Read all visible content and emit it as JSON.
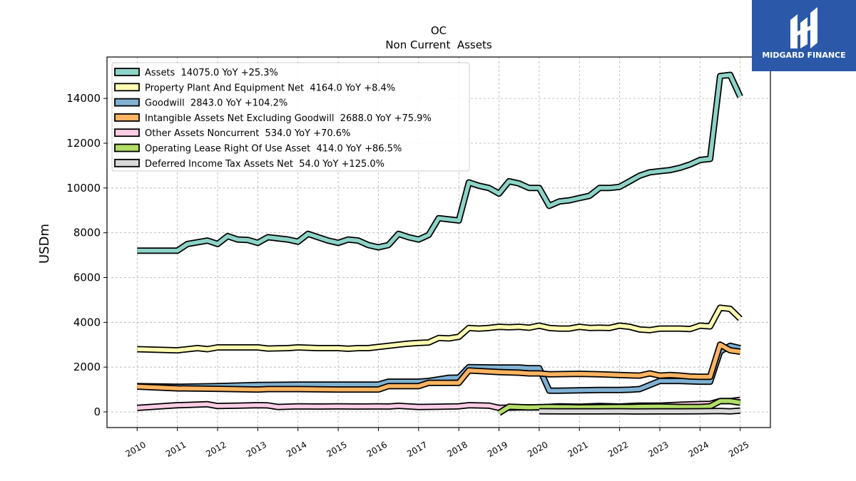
{
  "chart_data": {
    "type": "line",
    "title": "OC",
    "subtitle": "Non Current  Assets",
    "ylabel": "USDm",
    "xlabel": "",
    "ylim": [
      -700,
      15850
    ],
    "xlim": [
      2009.25,
      2025.75
    ],
    "yticks": [
      0,
      2000,
      4000,
      6000,
      8000,
      10000,
      12000,
      14000
    ],
    "xticks": [
      "2010",
      "2011",
      "2012",
      "2013",
      "2014",
      "2015",
      "2016",
      "2017",
      "2018",
      "2019",
      "2020",
      "2021",
      "2022",
      "2023",
      "2024",
      "2025"
    ],
    "grid": true,
    "legend_position": "top-left",
    "series": [
      {
        "name": "Assets",
        "legend": "Assets  14075.0 YoY +25.3%",
        "color": "#8dd3c7",
        "x": [
          2010.0,
          2011.0,
          2011.25,
          2011.75,
          2012.0,
          2012.25,
          2012.5,
          2012.75,
          2013.0,
          2013.25,
          2013.5,
          2013.75,
          2014.0,
          2014.25,
          2014.5,
          2014.75,
          2015.0,
          2015.25,
          2015.5,
          2015.75,
          2016.0,
          2016.25,
          2016.5,
          2016.75,
          2017.0,
          2017.25,
          2017.5,
          2017.75,
          2018.0,
          2018.25,
          2018.5,
          2018.75,
          2019.0,
          2019.25,
          2019.5,
          2019.75,
          2020.0,
          2020.25,
          2020.5,
          2020.75,
          2021.0,
          2021.25,
          2021.5,
          2021.75,
          2022.0,
          2022.25,
          2022.5,
          2022.75,
          2023.0,
          2023.25,
          2023.5,
          2023.75,
          2024.0,
          2024.25,
          2024.5,
          2024.75,
          2025.0
        ],
        "y": [
          7200,
          7200,
          7500,
          7650,
          7500,
          7850,
          7700,
          7680,
          7550,
          7800,
          7750,
          7700,
          7600,
          7950,
          7800,
          7650,
          7550,
          7700,
          7650,
          7450,
          7350,
          7450,
          7950,
          7800,
          7700,
          7900,
          8650,
          8600,
          8550,
          10250,
          10100,
          10000,
          9750,
          10300,
          10200,
          10000,
          10000,
          9200,
          9400,
          9450,
          9550,
          9650,
          10000,
          10000,
          10050,
          10300,
          10550,
          10700,
          10750,
          10800,
          10900,
          11050,
          11250,
          11300,
          15000,
          15050,
          14075
        ]
      },
      {
        "name": "Property Plant And Equipment Net",
        "legend": "Property Plant And Equipment Net  4164.0 YoY +8.4%",
        "color": "#ffffb3",
        "x": [
          2010.0,
          2011.0,
          2011.5,
          2011.75,
          2012.0,
          2012.5,
          2013.0,
          2013.25,
          2013.75,
          2014.0,
          2014.5,
          2015.0,
          2015.25,
          2015.5,
          2015.75,
          2016.0,
          2016.25,
          2016.5,
          2016.75,
          2017.0,
          2017.25,
          2017.5,
          2017.75,
          2018.0,
          2018.25,
          2018.5,
          2018.75,
          2019.0,
          2019.25,
          2019.5,
          2019.75,
          2020.0,
          2020.25,
          2020.5,
          2020.75,
          2021.0,
          2021.25,
          2021.5,
          2021.75,
          2022.0,
          2022.25,
          2022.5,
          2022.75,
          2023.0,
          2023.25,
          2023.5,
          2023.75,
          2024.0,
          2024.25,
          2024.5,
          2024.75,
          2025.0
        ],
        "y": [
          2800,
          2750,
          2850,
          2800,
          2880,
          2880,
          2880,
          2830,
          2850,
          2880,
          2850,
          2850,
          2820,
          2850,
          2850,
          2900,
          2950,
          3000,
          3050,
          3080,
          3100,
          3300,
          3280,
          3350,
          3750,
          3720,
          3750,
          3800,
          3780,
          3800,
          3760,
          3850,
          3750,
          3720,
          3720,
          3800,
          3750,
          3760,
          3750,
          3850,
          3800,
          3680,
          3650,
          3720,
          3720,
          3720,
          3700,
          3850,
          3820,
          4650,
          4600,
          4164
        ]
      },
      {
        "name": "Goodwill",
        "legend": "Goodwill  2843.0 YoY +104.2%",
        "color": "#80b1d3",
        "x": [
          2010.0,
          2011.0,
          2012.0,
          2013.0,
          2014.0,
          2015.0,
          2016.0,
          2016.25,
          2017.0,
          2017.25,
          2017.75,
          2018.0,
          2018.25,
          2019.0,
          2019.5,
          2019.75,
          2020.0,
          2020.25,
          2020.5,
          2021.0,
          2021.5,
          2022.0,
          2022.25,
          2022.5,
          2022.75,
          2023.0,
          2023.5,
          2024.0,
          2024.25,
          2024.5,
          2024.75,
          2025.0
        ],
        "y": [
          1150,
          1120,
          1150,
          1200,
          1220,
          1220,
          1220,
          1350,
          1350,
          1380,
          1520,
          1530,
          2000,
          1980,
          1980,
          1950,
          1950,
          950,
          950,
          960,
          980,
          980,
          990,
          1020,
          1200,
          1380,
          1380,
          1350,
          1350,
          2700,
          2950,
          2843
        ]
      },
      {
        "name": "Intangible Assets Net Excluding Goodwill",
        "legend": "Intangible Assets Net Excluding Goodwill  2688.0 YoY +75.9%",
        "color": "#fdb462",
        "x": [
          2010.0,
          2011.0,
          2012.0,
          2013.0,
          2013.25,
          2014.0,
          2015.0,
          2016.0,
          2016.25,
          2017.0,
          2017.25,
          2017.75,
          2018.0,
          2018.25,
          2019.0,
          2019.5,
          2019.75,
          2020.0,
          2020.25,
          2021.0,
          2021.5,
          2022.0,
          2022.25,
          2022.5,
          2022.75,
          2023.0,
          2023.25,
          2023.5,
          2023.75,
          2024.0,
          2024.25,
          2024.5,
          2024.75,
          2025.0
        ],
        "y": [
          1130,
          1050,
          1030,
          1000,
          1020,
          1020,
          1000,
          1000,
          1150,
          1150,
          1300,
          1300,
          1300,
          1850,
          1780,
          1750,
          1720,
          1720,
          1680,
          1700,
          1680,
          1650,
          1630,
          1620,
          1720,
          1620,
          1650,
          1620,
          1580,
          1570,
          1570,
          3000,
          2750,
          2688
        ]
      },
      {
        "name": "Other Assets Noncurrent",
        "legend": "Other Assets Noncurrent  534.0 YoY +70.6%",
        "color": "#fccde5",
        "x": [
          2010.0,
          2011.0,
          2011.25,
          2011.75,
          2012.0,
          2012.5,
          2013.0,
          2013.25,
          2013.5,
          2014.0,
          2014.5,
          2015.0,
          2015.5,
          2016.0,
          2016.25,
          2016.5,
          2017.0,
          2017.5,
          2018.0,
          2018.25,
          2018.75,
          2019.0,
          2019.5,
          2020.0,
          2020.5,
          2021.0,
          2021.5,
          2022.0,
          2022.5,
          2023.0,
          2023.5,
          2024.0,
          2024.25,
          2024.5,
          2024.75,
          2025.0
        ],
        "y": [
          180,
          300,
          310,
          340,
          260,
          280,
          300,
          290,
          220,
          250,
          240,
          250,
          240,
          250,
          240,
          270,
          220,
          230,
          250,
          300,
          280,
          180,
          200,
          200,
          250,
          230,
          260,
          240,
          280,
          280,
          320,
          350,
          360,
          480,
          480,
          534
        ]
      },
      {
        "name": "Operating Lease Right Of Use Asset",
        "legend": "Operating Lease Right Of Use Asset  414.0 YoY +86.5%",
        "color": "#b3de69",
        "x": [
          2019.0,
          2019.25,
          2019.75,
          2020.0,
          2020.25,
          2020.75,
          2021.0,
          2021.5,
          2022.0,
          2022.25,
          2022.5,
          2023.0,
          2023.5,
          2024.0,
          2024.25,
          2024.5,
          2024.75,
          2025.0
        ],
        "y": [
          -50,
          230,
          200,
          210,
          220,
          210,
          200,
          210,
          220,
          220,
          230,
          240,
          220,
          220,
          250,
          480,
          480,
          414
        ]
      },
      {
        "name": "Deferred Income Tax Assets Net",
        "legend": "Deferred Income Tax Assets Net  54.0 YoY +125.0%",
        "color": "#d9d9d9",
        "x": [
          2020.0,
          2020.5,
          2021.0,
          2021.5,
          2022.0,
          2022.5,
          2023.0,
          2023.5,
          2024.0,
          2024.5,
          2024.75,
          2025.0
        ],
        "y": [
          30,
          25,
          25,
          25,
          30,
          20,
          25,
          25,
          30,
          40,
          24,
          54
        ]
      }
    ]
  },
  "brand": {
    "name": "MIDGARD FINANCE",
    "bg_color": "#2b58a8"
  }
}
